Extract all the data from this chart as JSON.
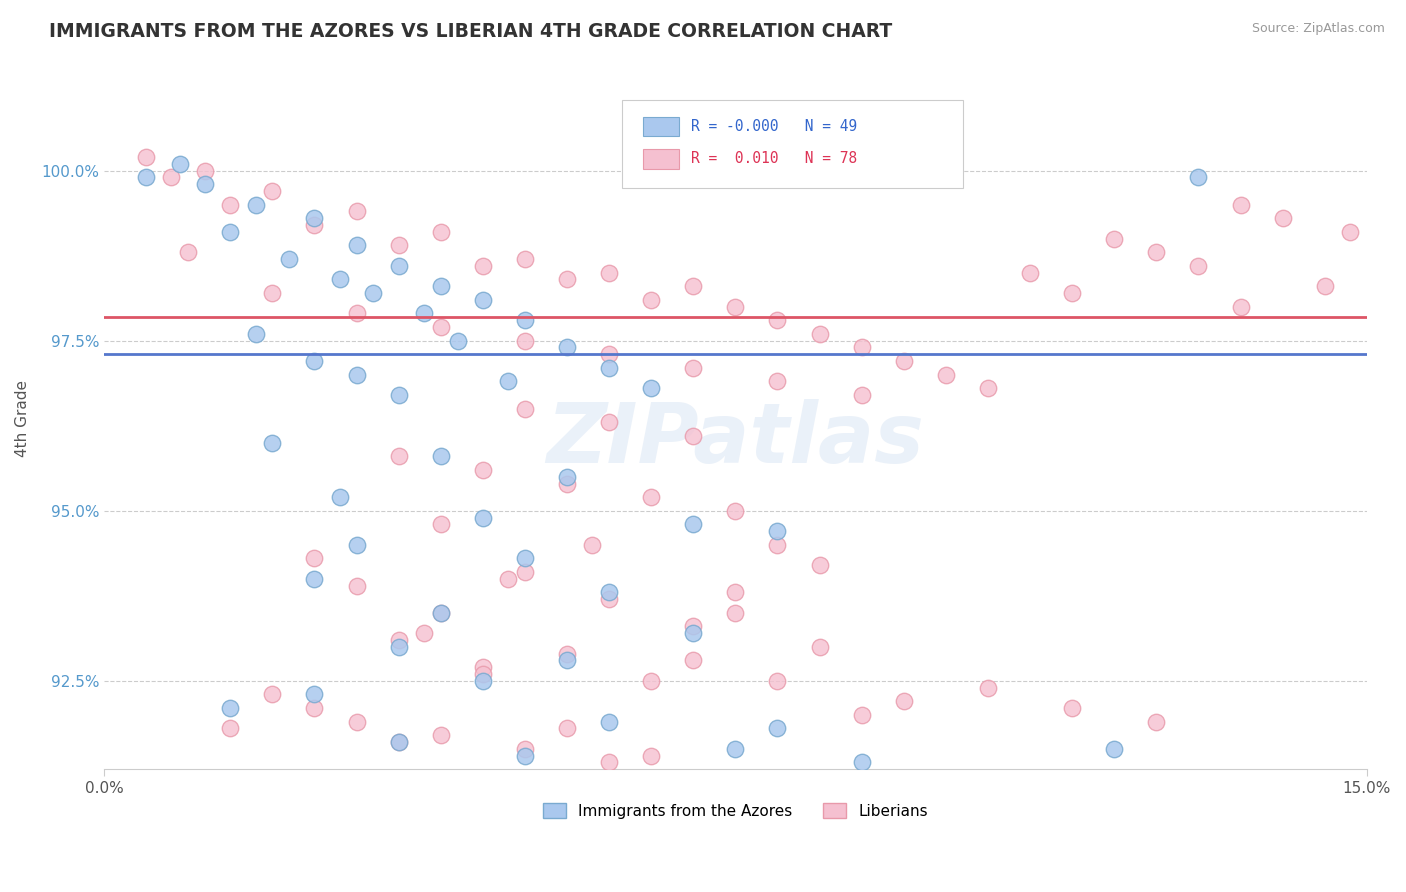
{
  "title": "IMMIGRANTS FROM THE AZORES VS LIBERIAN 4TH GRADE CORRELATION CHART",
  "source_text": "Source: ZipAtlas.com",
  "ylabel": "4th Grade",
  "x_min": 0.0,
  "x_max": 0.15,
  "y_min": 91.2,
  "y_max": 101.5,
  "x_ticks": [
    0.0,
    0.15
  ],
  "x_tick_labels": [
    "0.0%",
    "15.0%"
  ],
  "y_ticks": [
    92.5,
    95.0,
    97.5,
    100.0
  ],
  "y_tick_labels": [
    "92.5%",
    "95.0%",
    "97.5%",
    "100.0%"
  ],
  "blue_color": "#aac8ee",
  "blue_edge_color": "#7aaad0",
  "pink_color": "#f5c0d0",
  "pink_edge_color": "#e899aa",
  "blue_line_color": "#5577cc",
  "pink_line_color": "#dd5566",
  "blue_line_y": 97.3,
  "pink_line_y": 97.85,
  "watermark": "ZIPatlas",
  "blue_scatter": [
    [
      0.005,
      99.9
    ],
    [
      0.012,
      99.8
    ],
    [
      0.009,
      100.1
    ],
    [
      0.018,
      99.5
    ],
    [
      0.025,
      99.3
    ],
    [
      0.015,
      99.1
    ],
    [
      0.03,
      98.9
    ],
    [
      0.022,
      98.7
    ],
    [
      0.035,
      98.6
    ],
    [
      0.028,
      98.4
    ],
    [
      0.04,
      98.3
    ],
    [
      0.032,
      98.2
    ],
    [
      0.045,
      98.1
    ],
    [
      0.038,
      97.9
    ],
    [
      0.05,
      97.8
    ],
    [
      0.018,
      97.6
    ],
    [
      0.042,
      97.5
    ],
    [
      0.055,
      97.4
    ],
    [
      0.025,
      97.2
    ],
    [
      0.06,
      97.1
    ],
    [
      0.03,
      97.0
    ],
    [
      0.048,
      96.9
    ],
    [
      0.065,
      96.8
    ],
    [
      0.035,
      96.7
    ],
    [
      0.02,
      96.0
    ],
    [
      0.04,
      95.8
    ],
    [
      0.055,
      95.5
    ],
    [
      0.028,
      95.2
    ],
    [
      0.045,
      94.9
    ],
    [
      0.07,
      94.8
    ],
    [
      0.08,
      94.7
    ],
    [
      0.03,
      94.5
    ],
    [
      0.05,
      94.3
    ],
    [
      0.025,
      94.0
    ],
    [
      0.06,
      93.8
    ],
    [
      0.04,
      93.5
    ],
    [
      0.07,
      93.2
    ],
    [
      0.035,
      93.0
    ],
    [
      0.055,
      92.8
    ],
    [
      0.045,
      92.5
    ],
    [
      0.025,
      92.3
    ],
    [
      0.015,
      92.1
    ],
    [
      0.06,
      91.9
    ],
    [
      0.08,
      91.8
    ],
    [
      0.035,
      91.6
    ],
    [
      0.075,
      91.5
    ],
    [
      0.05,
      91.4
    ],
    [
      0.09,
      91.3
    ],
    [
      0.12,
      91.5
    ],
    [
      0.13,
      99.9
    ]
  ],
  "pink_scatter": [
    [
      0.005,
      100.2
    ],
    [
      0.012,
      100.0
    ],
    [
      0.008,
      99.9
    ],
    [
      0.02,
      99.7
    ],
    [
      0.015,
      99.5
    ],
    [
      0.03,
      99.4
    ],
    [
      0.025,
      99.2
    ],
    [
      0.04,
      99.1
    ],
    [
      0.035,
      98.9
    ],
    [
      0.01,
      98.8
    ],
    [
      0.05,
      98.7
    ],
    [
      0.045,
      98.6
    ],
    [
      0.06,
      98.5
    ],
    [
      0.055,
      98.4
    ],
    [
      0.07,
      98.3
    ],
    [
      0.02,
      98.2
    ],
    [
      0.065,
      98.1
    ],
    [
      0.075,
      98.0
    ],
    [
      0.03,
      97.9
    ],
    [
      0.08,
      97.8
    ],
    [
      0.04,
      97.7
    ],
    [
      0.085,
      97.6
    ],
    [
      0.05,
      97.5
    ],
    [
      0.09,
      97.4
    ],
    [
      0.06,
      97.3
    ],
    [
      0.095,
      97.2
    ],
    [
      0.07,
      97.1
    ],
    [
      0.1,
      97.0
    ],
    [
      0.08,
      96.9
    ],
    [
      0.105,
      96.8
    ],
    [
      0.09,
      96.7
    ],
    [
      0.11,
      98.5
    ],
    [
      0.115,
      98.2
    ],
    [
      0.12,
      99.0
    ],
    [
      0.125,
      98.8
    ],
    [
      0.13,
      98.6
    ],
    [
      0.135,
      98.0
    ],
    [
      0.14,
      99.3
    ],
    [
      0.05,
      96.5
    ],
    [
      0.06,
      96.3
    ],
    [
      0.07,
      96.1
    ],
    [
      0.035,
      95.8
    ],
    [
      0.045,
      95.6
    ],
    [
      0.055,
      95.4
    ],
    [
      0.065,
      95.2
    ],
    [
      0.075,
      95.0
    ],
    [
      0.04,
      94.8
    ],
    [
      0.08,
      94.5
    ],
    [
      0.025,
      94.3
    ],
    [
      0.05,
      94.1
    ],
    [
      0.03,
      93.9
    ],
    [
      0.06,
      93.7
    ],
    [
      0.04,
      93.5
    ],
    [
      0.07,
      93.3
    ],
    [
      0.035,
      93.1
    ],
    [
      0.055,
      92.9
    ],
    [
      0.045,
      92.7
    ],
    [
      0.065,
      92.5
    ],
    [
      0.075,
      93.8
    ],
    [
      0.085,
      94.2
    ],
    [
      0.02,
      92.3
    ],
    [
      0.025,
      92.1
    ],
    [
      0.03,
      91.9
    ],
    [
      0.04,
      91.7
    ],
    [
      0.05,
      91.5
    ],
    [
      0.06,
      91.3
    ],
    [
      0.07,
      92.8
    ],
    [
      0.08,
      92.5
    ],
    [
      0.09,
      92.0
    ],
    [
      0.045,
      92.6
    ],
    [
      0.055,
      91.8
    ],
    [
      0.035,
      91.6
    ],
    [
      0.065,
      91.4
    ],
    [
      0.075,
      93.5
    ],
    [
      0.085,
      93.0
    ],
    [
      0.095,
      92.2
    ],
    [
      0.105,
      92.4
    ],
    [
      0.115,
      92.1
    ],
    [
      0.125,
      91.9
    ],
    [
      0.135,
      99.5
    ],
    [
      0.145,
      98.3
    ],
    [
      0.148,
      99.1
    ],
    [
      0.038,
      93.2
    ],
    [
      0.048,
      94.0
    ],
    [
      0.058,
      94.5
    ],
    [
      0.015,
      91.8
    ]
  ]
}
